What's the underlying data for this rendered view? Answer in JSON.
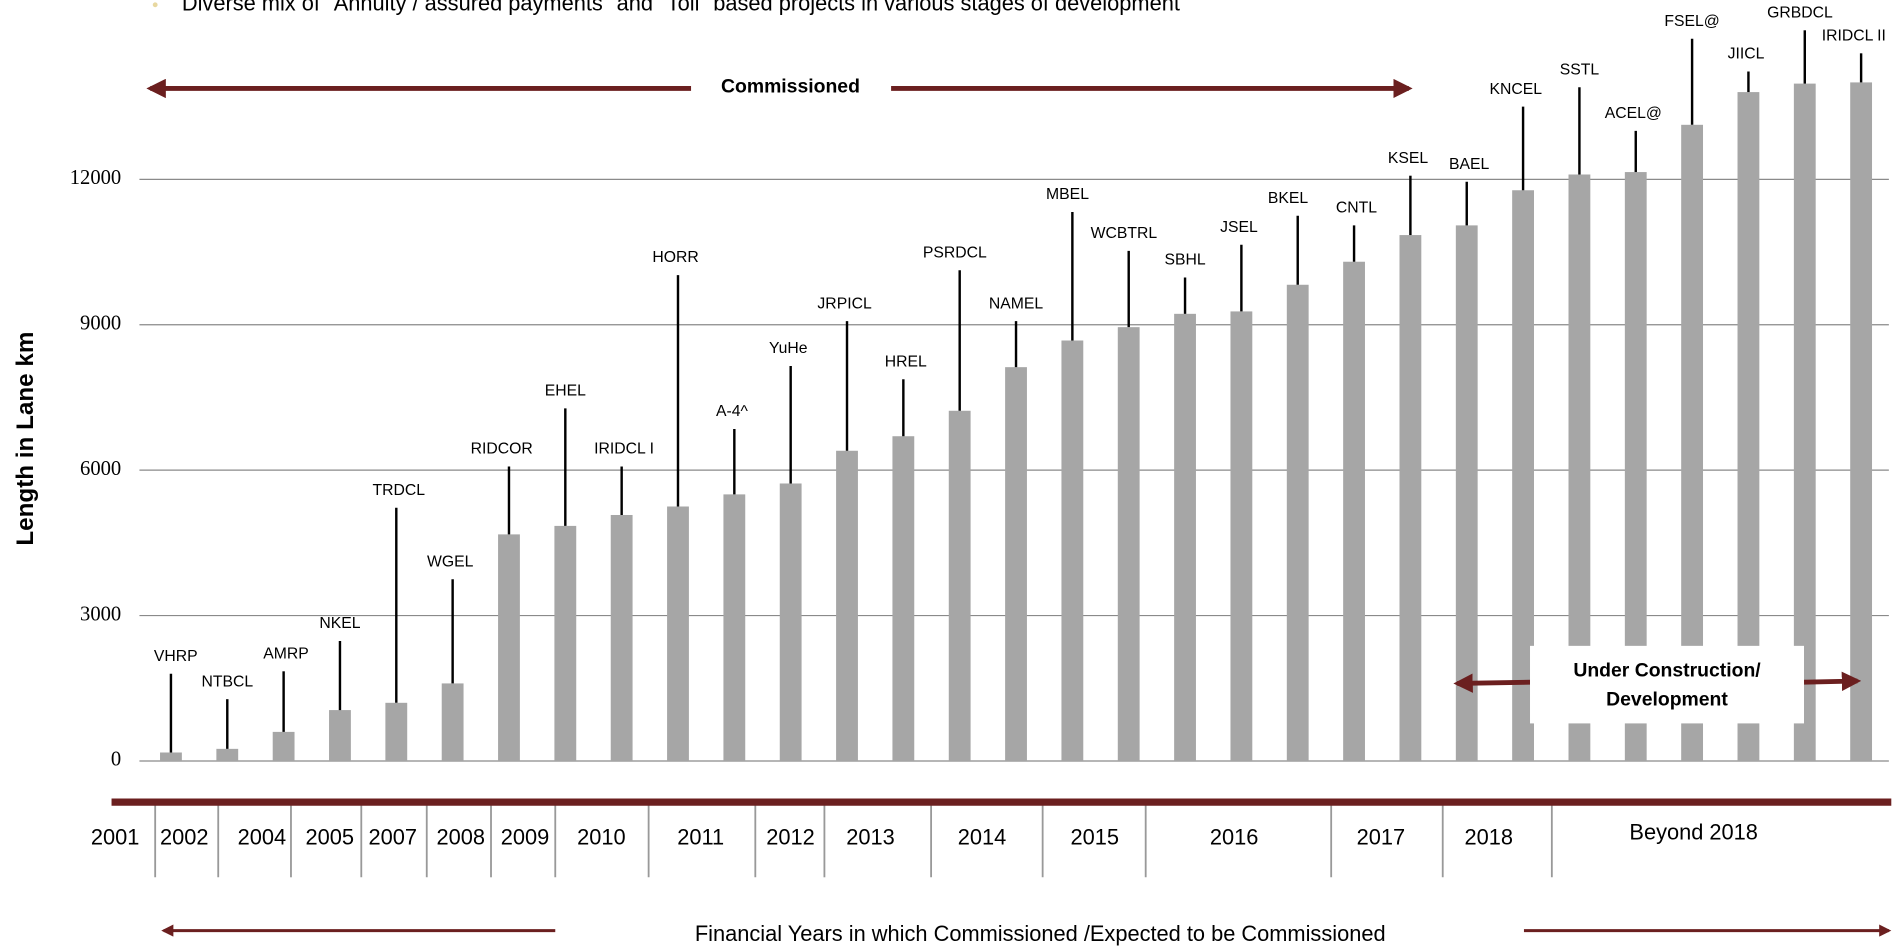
{
  "chart_data": {
    "type": "bar",
    "subtitle": "Diverse mix of \"Annuity / assured payments\" and \"Toll\" based  projects in various stages of development",
    "y_label": "Length in Lane km",
    "x_label": "Financial Years in which Commissioned /Expected to be Commissioned",
    "commissioned_label": "Commissioned",
    "under_construction_label": [
      "Under Construction/",
      "Development"
    ],
    "categories": [
      "VHRP",
      "NTBCL",
      "AMRP",
      "NKEL",
      "TRDCL",
      "WGEL",
      "RIDCOR",
      "EHEL",
      "IRIDCL I",
      "HORR",
      "A-4^",
      "YuHe",
      "JRPICL",
      "HREL",
      "PSRDCL",
      "NAMEL",
      "MBEL",
      "WCBTRL",
      "SBHL",
      "JSEL",
      "BKEL",
      "CNTL",
      "KSEL",
      "BAEL",
      "KNCEL",
      "SSTL",
      "ACEL@",
      "FSEL@",
      "JIICL",
      "GRBDCL",
      "IRIDCL II"
    ],
    "values": [
      175,
      250,
      600,
      1050,
      1200,
      1600,
      4675,
      4850,
      5075,
      5250,
      5500,
      5725,
      6400,
      6700,
      7225,
      8125,
      8675,
      8950,
      9225,
      9275,
      9825,
      10300,
      10850,
      11050,
      11775,
      12100,
      12150,
      13125,
      13800,
      13975,
      14000
    ],
    "color": "#a6a6a6",
    "ylim": [
      0,
      14000
    ],
    "yticks": [
      0,
      3000,
      6000,
      9000,
      12000
    ],
    "grid": true,
    "fiscal_years": [
      "2001",
      "2002",
      "2004",
      "2005",
      "2007",
      "2008",
      "2009",
      "2010",
      "2011",
      "2012",
      "2013",
      "2014",
      "2015",
      "2016",
      "2017",
      "2018",
      "Beyond  2018"
    ]
  }
}
